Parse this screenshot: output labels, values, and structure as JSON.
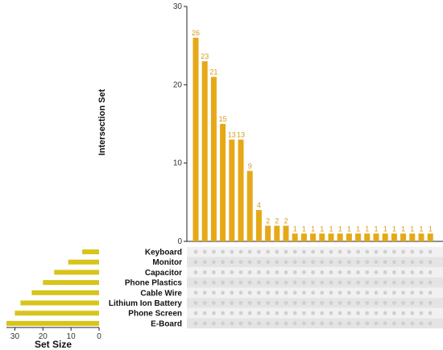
{
  "chart_data": {
    "type": "bar",
    "subtype": "upset",
    "ylabel": "Intersection Set",
    "ylim": [
      0,
      30
    ],
    "y_ticks": [
      0,
      10,
      20,
      30
    ],
    "bar_color": "#e6a817",
    "sets": [
      {
        "name": "Keyboard",
        "size": 6
      },
      {
        "name": "Monitor",
        "size": 11
      },
      {
        "name": "Capacitor",
        "size": 16
      },
      {
        "name": "Phone Plastics",
        "size": 20
      },
      {
        "name": "Cable Wire",
        "size": 24
      },
      {
        "name": "Lithium Ion Battery",
        "size": 28
      },
      {
        "name": "Phone Screen",
        "size": 30
      },
      {
        "name": "E-Board",
        "size": 33
      }
    ],
    "set_size_axis": {
      "label": "Set Size",
      "ticks": [
        30,
        20,
        10,
        0
      ],
      "max": 33
    },
    "intersections": [
      {
        "value": 26,
        "sets": []
      },
      {
        "value": 23,
        "sets": []
      },
      {
        "value": 21,
        "sets": []
      },
      {
        "value": 15,
        "sets": []
      },
      {
        "value": 13,
        "sets": []
      },
      {
        "value": 13,
        "sets": []
      },
      {
        "value": 9,
        "sets": []
      },
      {
        "value": 4,
        "sets": []
      },
      {
        "value": 2,
        "sets": []
      },
      {
        "value": 2,
        "sets": []
      },
      {
        "value": 2,
        "sets": []
      },
      {
        "value": 1,
        "sets": []
      },
      {
        "value": 1,
        "sets": []
      },
      {
        "value": 1,
        "sets": []
      },
      {
        "value": 1,
        "sets": []
      },
      {
        "value": 1,
        "sets": []
      },
      {
        "value": 1,
        "sets": []
      },
      {
        "value": 1,
        "sets": []
      },
      {
        "value": 1,
        "sets": []
      },
      {
        "value": 1,
        "sets": []
      },
      {
        "value": 1,
        "sets": []
      },
      {
        "value": 1,
        "sets": []
      },
      {
        "value": 1,
        "sets": []
      },
      {
        "value": 1,
        "sets": []
      },
      {
        "value": 1,
        "sets": []
      },
      {
        "value": 1,
        "sets": []
      },
      {
        "value": 1,
        "sets": []
      }
    ]
  }
}
